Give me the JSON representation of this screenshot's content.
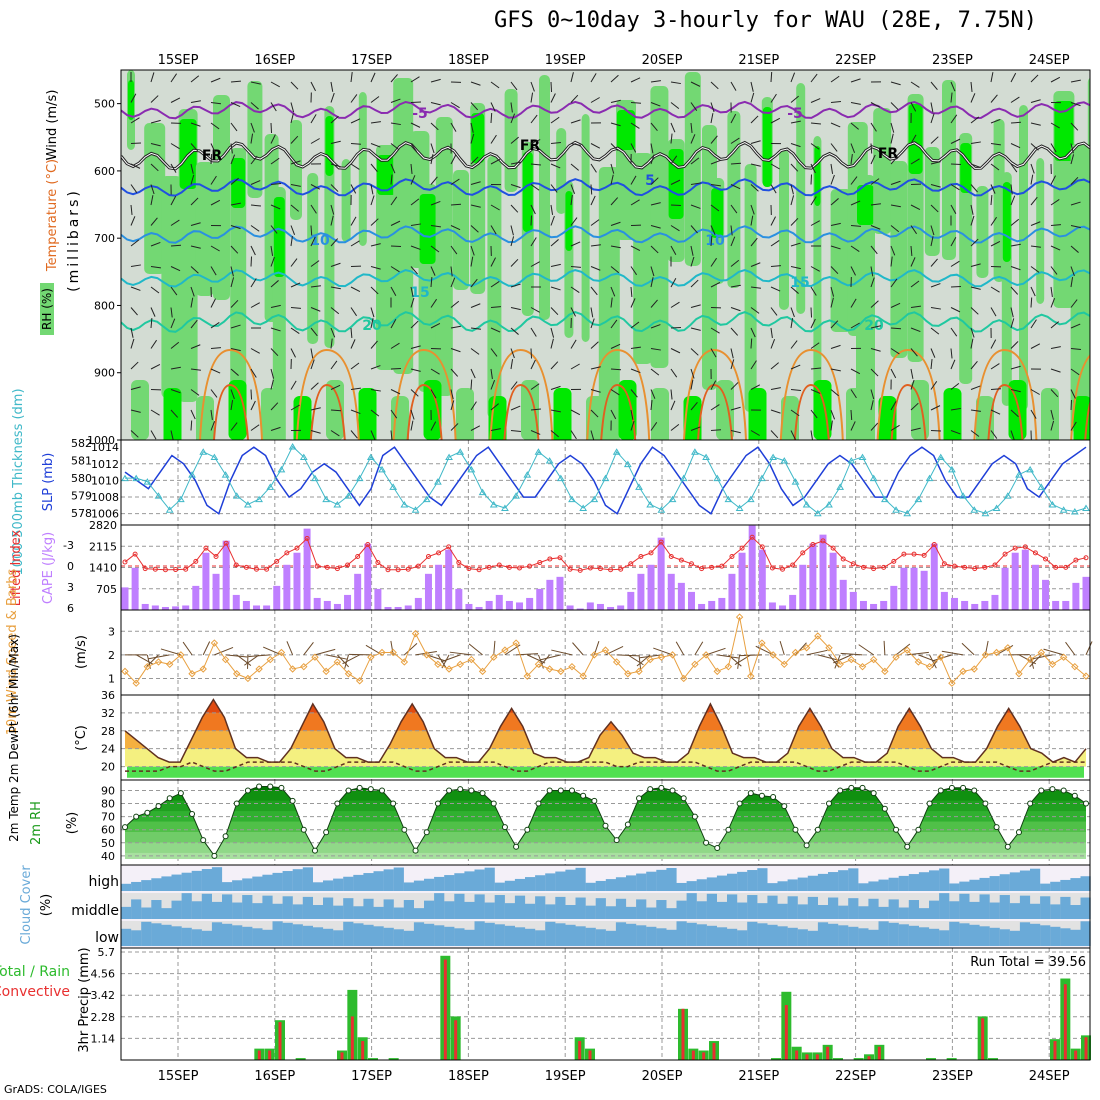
{
  "title": "GFS 0~10day 3-hourly for WAU (28E, 7.75N)",
  "credit": "GrADS: COLA/IGES",
  "run_total_label": "Run Total = 39.56",
  "dates": [
    "15SEP",
    "16SEP",
    "17SEP",
    "18SEP",
    "19SEP",
    "20SEP",
    "21SEP",
    "22SEP",
    "23SEP",
    "24SEP"
  ],
  "colors": {
    "rh_light": "#d3dcd3",
    "rh_mid": "#73d873",
    "rh_high": "#00e800",
    "slp": "#1f3fd8",
    "thickness": "#3fb8c8",
    "li": "#e83030",
    "cape": "#bf7fff",
    "wind10": "#e8a040",
    "temp_fill_warm": "#e86a10",
    "temp_fill_yellow": "#f4f080",
    "temp_fill_green": "#50e050",
    "rh2m": "#1a9a1a",
    "cloud": "#6aaad8",
    "cloud_bg": "#e2e2e2",
    "total_rain": "#2dbb2d",
    "convective": "#e83030"
  },
  "chart_data": [
    {
      "type": "heatmap",
      "title": "",
      "ylabel": "(millibars)",
      "side_labels": [
        "Wind (m/s)",
        "Temperature (°C)",
        "RH (%)"
      ],
      "y_ticks": [
        500,
        600,
        700,
        800,
        900,
        1000
      ],
      "y_range": [
        450,
        1000
      ],
      "isotherm_labels": [
        "-5",
        "-5",
        "FR",
        "FR",
        "FR",
        "5",
        "10",
        "10",
        "15",
        "15",
        "20",
        "20"
      ],
      "isotherms_mb": {
        "minus5": 510,
        "freezing": 578,
        "plus5": 625,
        "plus10": 695,
        "plus15": 760,
        "plus20": 825
      }
    },
    {
      "type": "line",
      "left_label": "1000-500mb Thickness (dm)",
      "right_label": "SLP (mb)",
      "thickness_ticks": [
        578,
        579,
        580,
        581,
        582
      ],
      "slp_ticks": [
        1006,
        1008,
        1010,
        1012,
        1014
      ],
      "slp": [
        1011,
        1010,
        1009,
        1011,
        1013,
        1012,
        1010,
        1007,
        1006,
        1010,
        1013,
        1014,
        1013,
        1010,
        1008,
        1009,
        1011,
        1012,
        1011,
        1009,
        1007,
        1009,
        1013,
        1014,
        1012,
        1010,
        1008,
        1007,
        1009,
        1011,
        1013,
        1014,
        1012,
        1010,
        1008,
        1008,
        1010,
        1012,
        1013,
        1012,
        1010,
        1007,
        1006,
        1009,
        1012,
        1014,
        1013,
        1011,
        1009,
        1007,
        1006,
        1009,
        1011,
        1013,
        1014,
        1012,
        1009,
        1007,
        1008,
        1010,
        1012,
        1013,
        1012,
        1010,
        1008,
        1008,
        1011,
        1013,
        1014,
        1013,
        1010,
        1008,
        1008,
        1010,
        1012,
        1013,
        1012,
        1009,
        1008,
        1010,
        1012,
        1013,
        1014
      ],
      "thickness": [
        580.0,
        580.0,
        579.8,
        579.0,
        578.2,
        578.8,
        580.2,
        581.5,
        581.2,
        580.2,
        579.0,
        578.5,
        578.8,
        579.5,
        580.5,
        581.8,
        581.2,
        580.0,
        578.8,
        578.5,
        579.0,
        580.0,
        581.2,
        580.5,
        579.5,
        578.5,
        578.2,
        578.8,
        579.8,
        581.2,
        581.5,
        580.5,
        579.2,
        578.5,
        578.3,
        579.0,
        580.2,
        581.5,
        581.0,
        580.0,
        578.8,
        578.3,
        578.8,
        580.0,
        581.5,
        580.8,
        579.5,
        578.5,
        578.2,
        578.8,
        580.0,
        581.5,
        581.2,
        580.0,
        578.8,
        578.3,
        578.8,
        580.0,
        581.2,
        581.0,
        579.8,
        578.5,
        578.0,
        578.5,
        579.5,
        581.0,
        581.2,
        580.0,
        578.8,
        578.2,
        578.0,
        578.8,
        580.0,
        581.2,
        580.5,
        579.0,
        578.2,
        578.0,
        578.3,
        579.0,
        580.2,
        580.5,
        579.5,
        578.5,
        578.2,
        578.1,
        578.3
      ]
    },
    {
      "type": "bar",
      "left_label": "Lifted Index",
      "right_label": "CAPE (J/kg)",
      "li_ticks": [
        "-3",
        "0",
        "3",
        "6"
      ],
      "cape_ticks": [
        705,
        1410,
        2115,
        2820
      ],
      "cape": [
        750,
        1400,
        200,
        150,
        100,
        120,
        150,
        800,
        1900,
        1200,
        2300,
        500,
        300,
        150,
        150,
        800,
        1500,
        1900,
        2700,
        400,
        300,
        200,
        500,
        1200,
        2200,
        700,
        100,
        100,
        150,
        400,
        1200,
        1500,
        2000,
        700,
        200,
        100,
        300,
        500,
        300,
        250,
        400,
        700,
        1000,
        1100,
        150,
        50,
        250,
        200,
        100,
        150,
        600,
        1200,
        1500,
        2400,
        1200,
        900,
        600,
        200,
        300,
        400,
        1200,
        1900,
        2800,
        2000,
        250,
        150,
        500,
        1500,
        2200,
        2500,
        1900,
        1000,
        600,
        300,
        200,
        300,
        800,
        1400,
        1400,
        1300,
        2200,
        600,
        400,
        300,
        200,
        300,
        500,
        1400,
        1900,
        2000,
        1500,
        1000,
        300,
        300,
        900,
        1100
      ]
    },
    {
      "type": "line",
      "left_label": "10m Wind Speed & Barbs",
      "unit": "(m/s)",
      "y_ticks": [
        1,
        2,
        3
      ],
      "speed": [
        1.3,
        0.8,
        1.5,
        1.7,
        1.6,
        2.0,
        1.2,
        1.4,
        2.5,
        1.8,
        1.2,
        1.0,
        1.4,
        1.8,
        2.1,
        1.4,
        1.5,
        1.9,
        1.3,
        1.7,
        1.2,
        0.9,
        1.9,
        2.1,
        2.1,
        1.7,
        2.9,
        2.0,
        1.6,
        1.4,
        1.6,
        1.8,
        1.3,
        1.9,
        2.2,
        2.5,
        1.1,
        1.6,
        1.4,
        1.3,
        1.5,
        1.1,
        2.0,
        2.2,
        1.7,
        1.2,
        1.3,
        1.8,
        1.9,
        2.0,
        1.0,
        1.6,
        2.0,
        1.3,
        1.5,
        3.6,
        1.1,
        2.5,
        2.0,
        1.6,
        2.1,
        2.3,
        2.8,
        2.3,
        1.6,
        1.8,
        1.5,
        1.8,
        1.3,
        1.9,
        2.2,
        1.7,
        1.5,
        1.9,
        0.8,
        1.3,
        1.4,
        2.0,
        2.1,
        2.3,
        1.2,
        1.8,
        2.1,
        1.6,
        1.9,
        1.5,
        1.1
      ]
    },
    {
      "type": "area",
      "left_label": "2m Temp 2m DewPt (6hr Min/Max)",
      "unit": "(°C)",
      "y_ticks": [
        20,
        24,
        28,
        32,
        36
      ],
      "temp": [
        28,
        26,
        24,
        22,
        21,
        21,
        26,
        31,
        35,
        31,
        24,
        22,
        22,
        21,
        21,
        24,
        29,
        34,
        30,
        24,
        22,
        22,
        21,
        21,
        25,
        30,
        34,
        30,
        24,
        22,
        22,
        21,
        21,
        24,
        29,
        33,
        29,
        23,
        22,
        22,
        21,
        21,
        22,
        27,
        30,
        27,
        23,
        22,
        22,
        21,
        21,
        23,
        29,
        34,
        29,
        23,
        22,
        22,
        21,
        21,
        23,
        29,
        33,
        29,
        24,
        22,
        22,
        21,
        21,
        23,
        29,
        33,
        29,
        24,
        22,
        22,
        21,
        21,
        24,
        29,
        33,
        29,
        24,
        23,
        21,
        22,
        21,
        24
      ],
      "dewpt": [
        19,
        19,
        19,
        19,
        20,
        20,
        21,
        20,
        19,
        19,
        20,
        21,
        21,
        21,
        21,
        21,
        20,
        19,
        19,
        20,
        21,
        21,
        21,
        21,
        21,
        20,
        19,
        19,
        20,
        21,
        21,
        21,
        21,
        21,
        20,
        19,
        19,
        20,
        21,
        21,
        21,
        21,
        21,
        21,
        20,
        20,
        21,
        21,
        21,
        21,
        21,
        21,
        20,
        19,
        19,
        20,
        21,
        21,
        21,
        21,
        21,
        20,
        19,
        19,
        20,
        21,
        21,
        21,
        21,
        21,
        20,
        19,
        19,
        20,
        21,
        21,
        21,
        21,
        21,
        20,
        19,
        19,
        20,
        21,
        21,
        21,
        21
      ]
    },
    {
      "type": "area",
      "left_label": "2m RH",
      "unit": "(%)",
      "y_ticks": [
        40,
        50,
        60,
        70,
        80,
        90
      ],
      "rh": [
        62,
        70,
        73,
        78,
        84,
        88,
        72,
        52,
        40,
        55,
        80,
        90,
        93,
        93,
        92,
        82,
        60,
        44,
        58,
        80,
        90,
        92,
        91,
        90,
        80,
        60,
        44,
        58,
        80,
        90,
        91,
        90,
        88,
        80,
        62,
        47,
        60,
        80,
        90,
        90,
        90,
        86,
        82,
        63,
        52,
        64,
        84,
        91,
        92,
        90,
        84,
        70,
        50,
        46,
        60,
        80,
        88,
        86,
        85,
        78,
        60,
        48,
        60,
        80,
        90,
        92,
        92,
        88,
        76,
        60,
        47,
        60,
        80,
        90,
        92,
        92,
        90,
        80,
        62,
        47,
        58,
        80,
        90,
        91,
        90,
        86,
        80
      ]
    },
    {
      "type": "heatmap",
      "left_label": "Cloud Cover",
      "unit": "(%)",
      "layers": [
        "high",
        "middle",
        "low"
      ]
    },
    {
      "type": "bar",
      "left_label": "Total / Rain",
      "left_label2": "Convective",
      "ylabel": "3hr Precip (mm)",
      "y_ticks": [
        1.14,
        2.28,
        3.42,
        4.56,
        5.7
      ],
      "total": [
        0,
        0,
        0,
        0,
        0,
        0,
        0,
        0,
        0,
        0,
        0,
        0,
        0,
        0.6,
        0.6,
        2.1,
        0,
        0.1,
        0,
        0,
        0,
        0.5,
        3.7,
        1.2,
        0.1,
        0,
        0.1,
        0,
        0,
        0,
        0,
        5.5,
        2.3,
        0,
        0,
        0,
        0,
        0,
        0,
        0,
        0,
        0,
        0,
        0,
        1.2,
        0.6,
        0,
        0,
        0,
        0,
        0,
        0,
        0,
        0,
        2.7,
        0.6,
        0.5,
        1.0,
        0,
        0,
        0,
        0,
        0,
        0.1,
        3.6,
        0.7,
        0.4,
        0.4,
        0.8,
        0.1,
        0,
        0.1,
        0.3,
        0.8,
        0,
        0,
        0,
        0,
        0.1,
        0,
        0.1,
        0,
        0,
        2.3,
        0.1,
        0,
        0,
        0,
        0,
        0,
        1.1,
        4.3,
        0.6,
        1.3
      ],
      "convective": [
        0,
        0,
        0,
        0,
        0,
        0,
        0,
        0,
        0,
        0,
        0,
        0,
        0,
        0.5,
        0.5,
        2.0,
        0,
        0,
        0,
        0,
        0,
        0.4,
        2.3,
        1.0,
        0,
        0,
        0,
        0,
        0,
        0,
        0,
        5.3,
        2.1,
        0,
        0,
        0,
        0,
        0,
        0,
        0,
        0,
        0,
        0,
        0,
        1.0,
        0.5,
        0,
        0,
        0,
        0,
        0,
        0,
        0,
        0,
        2.7,
        0.5,
        0.4,
        0.9,
        0,
        0,
        0,
        0,
        0,
        0,
        2.9,
        0.5,
        0.3,
        0.3,
        0.7,
        0,
        0,
        0,
        0.2,
        0.7,
        0,
        0,
        0,
        0,
        0,
        0,
        0,
        0,
        0,
        2.2,
        0,
        0,
        0,
        0,
        0,
        0,
        1.0,
        4.0,
        0.5,
        1.2
      ]
    }
  ]
}
